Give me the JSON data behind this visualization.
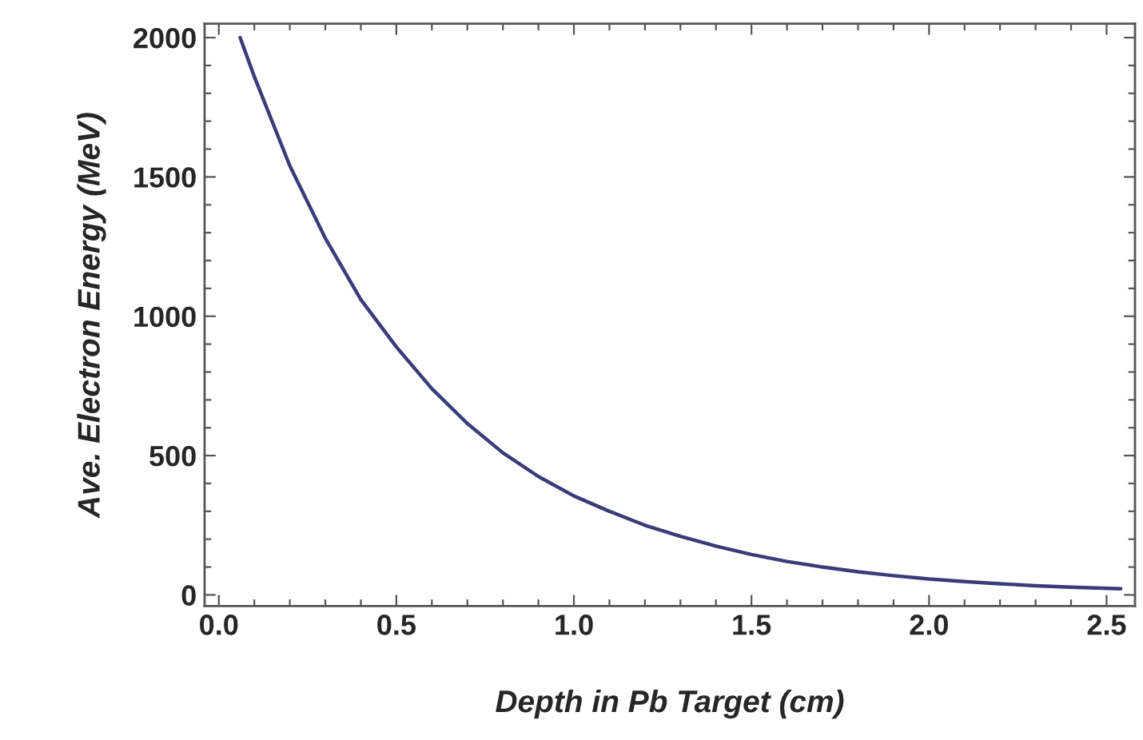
{
  "chart_data": {
    "type": "line",
    "xlabel": "Depth in Pb Target (cm)",
    "ylabel": "Ave. Electron Energy (MeV)",
    "x": [
      0.06,
      0.1,
      0.2,
      0.3,
      0.4,
      0.5,
      0.6,
      0.7,
      0.8,
      0.9,
      1.0,
      1.1,
      1.2,
      1.3,
      1.4,
      1.5,
      1.6,
      1.7,
      1.8,
      1.9,
      2.0,
      2.1,
      2.2,
      2.3,
      2.4,
      2.54
    ],
    "series": [
      {
        "color": "#3b3b7a",
        "values": [
          2000,
          1860,
          1540,
          1280,
          1060,
          890,
          740,
          615,
          510,
          425,
          355,
          300,
          250,
          210,
          175,
          145,
          120,
          100,
          83,
          69,
          57,
          48,
          40,
          33,
          28,
          22
        ]
      }
    ],
    "xlim": [
      -0.04,
      2.58
    ],
    "ylim": [
      -40,
      2050
    ],
    "xticks": [
      {
        "value": 0,
        "label": "0.0"
      },
      0.5,
      {
        "value": 1,
        "label": "1.0"
      },
      1.5,
      {
        "value": 2,
        "label": "2.0"
      },
      2.5
    ],
    "yticks": [
      0,
      500,
      1000,
      1500,
      2000
    ],
    "grid": false,
    "legend": false,
    "marker": "none",
    "line_style": "solid"
  }
}
